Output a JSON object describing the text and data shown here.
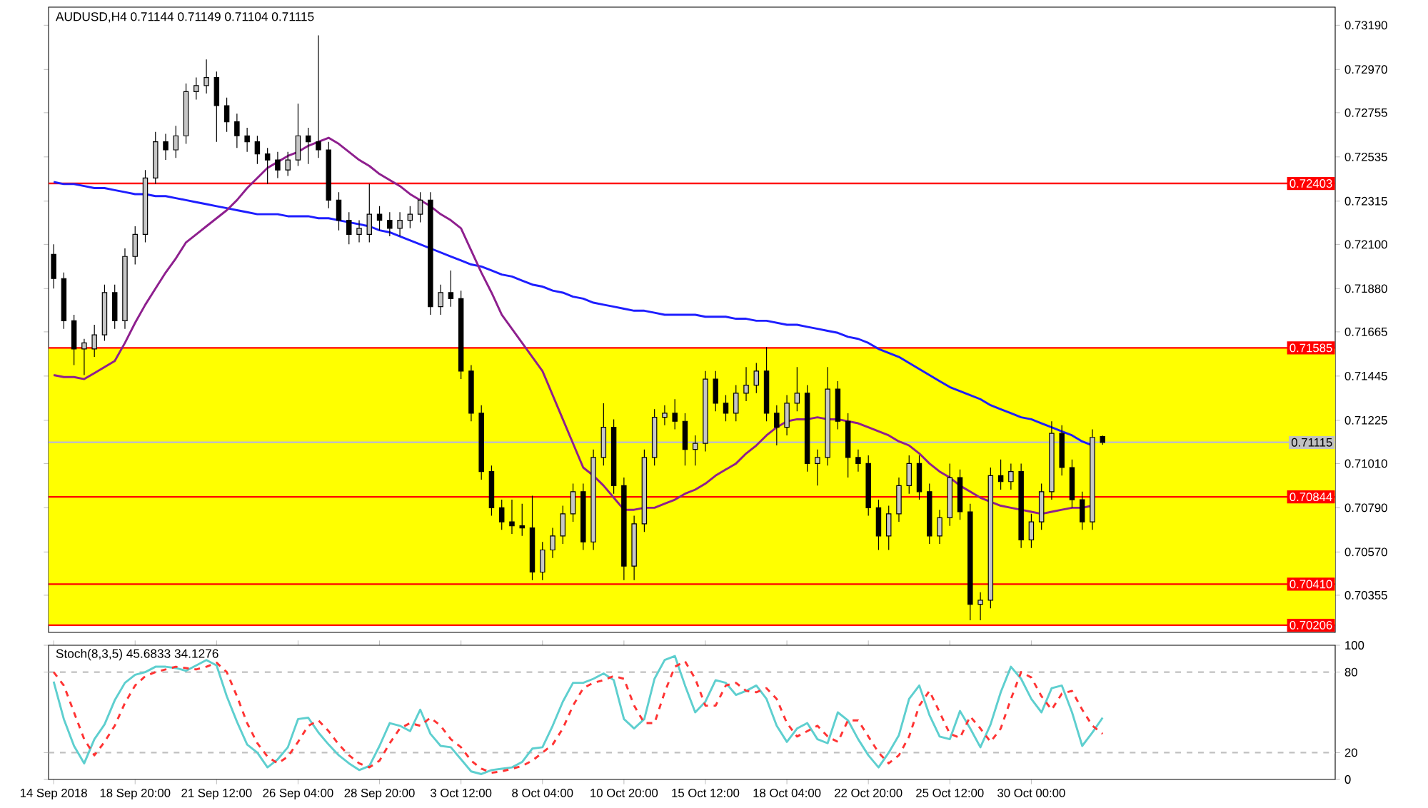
{
  "chart_data": [
    {
      "type": "candlestick",
      "title": "AUDUSD,H4 0.71144 0.71149 0.71104 0.71115",
      "categories": [
        null,
        null,
        null,
        null,
        null,
        null,
        null,
        null,
        null,
        null,
        null,
        null,
        null,
        null,
        null,
        null,
        null,
        null,
        null,
        null,
        null,
        null,
        null,
        null,
        null,
        null,
        null,
        null,
        null,
        null,
        null,
        null,
        null,
        null,
        null,
        null,
        null,
        null,
        null,
        null,
        null,
        null,
        null,
        null,
        null,
        null,
        null,
        null,
        null,
        null,
        null,
        null,
        null,
        null,
        null,
        null,
        null,
        null,
        null,
        null,
        null,
        null,
        null,
        null,
        null,
        null,
        null,
        null,
        null,
        null,
        null,
        null,
        null,
        null,
        null,
        null,
        null,
        null,
        null,
        null,
        null,
        null,
        null,
        null,
        null,
        null,
        null,
        null,
        null,
        null,
        null,
        null,
        null,
        null,
        null,
        null,
        null,
        null,
        null,
        null,
        null,
        null,
        null,
        null
      ],
      "tick_labels": "y",
      "ohlc": [
        [
          0.7205,
          0.721,
          0.7188,
          0.7193
        ],
        [
          0.7193,
          0.7196,
          0.7168,
          0.7172
        ],
        [
          0.7172,
          0.7175,
          0.715,
          0.7158
        ],
        [
          0.7158,
          0.7163,
          0.7145,
          0.7161
        ],
        [
          0.7158,
          0.717,
          0.7154,
          0.7165
        ],
        [
          0.7165,
          0.719,
          0.7162,
          0.7186
        ],
        [
          0.7186,
          0.719,
          0.7168,
          0.7172
        ],
        [
          0.7172,
          0.7208,
          0.7168,
          0.7204
        ],
        [
          0.7204,
          0.7219,
          0.72,
          0.7215
        ],
        [
          0.7215,
          0.7247,
          0.7211,
          0.7243
        ],
        [
          0.7243,
          0.7266,
          0.724,
          0.7261
        ],
        [
          0.7261,
          0.7265,
          0.7252,
          0.7257
        ],
        [
          0.7257,
          0.7269,
          0.7253,
          0.7264
        ],
        [
          0.7264,
          0.729,
          0.726,
          0.7286
        ],
        [
          0.7286,
          0.7293,
          0.7282,
          0.7289
        ],
        [
          0.7289,
          0.7302,
          0.7285,
          0.7293
        ],
        [
          0.7293,
          0.7296,
          0.7261,
          0.7279
        ],
        [
          0.7279,
          0.7283,
          0.7266,
          0.7271
        ],
        [
          0.7271,
          0.7275,
          0.7258,
          0.7264
        ],
        [
          0.7264,
          0.7268,
          0.7256,
          0.7261
        ],
        [
          0.7261,
          0.7264,
          0.725,
          0.7255
        ],
        [
          0.7255,
          0.7258,
          0.724,
          0.7252
        ],
        [
          0.7252,
          0.7256,
          0.7243,
          0.7247
        ],
        [
          0.7247,
          0.7256,
          0.7244,
          0.7252
        ],
        [
          0.7252,
          0.728,
          0.7249,
          0.7264
        ],
        [
          0.7264,
          0.7268,
          0.725,
          0.7261
        ],
        [
          0.7261,
          0.7314,
          0.7253,
          0.7257
        ],
        [
          0.7257,
          0.7261,
          0.7228,
          0.7232
        ],
        [
          0.7232,
          0.7236,
          0.7217,
          0.7222
        ],
        [
          0.7222,
          0.7226,
          0.721,
          0.7215
        ],
        [
          0.7215,
          0.7222,
          0.7211,
          0.7218
        ],
        [
          0.7215,
          0.724,
          0.7211,
          0.7225
        ],
        [
          0.7225,
          0.7229,
          0.7217,
          0.7222
        ],
        [
          0.7222,
          0.7226,
          0.7214,
          0.7218
        ],
        [
          0.7218,
          0.7226,
          0.7214,
          0.7222
        ],
        [
          0.7222,
          0.7229,
          0.7218,
          0.7225
        ],
        [
          0.7225,
          0.7236,
          0.7221,
          0.7232
        ],
        [
          0.7232,
          0.7236,
          0.7175,
          0.7179
        ],
        [
          0.7179,
          0.719,
          0.7175,
          0.7186
        ],
        [
          0.7186,
          0.7197,
          0.7179,
          0.7183
        ],
        [
          0.7183,
          0.7187,
          0.7143,
          0.7147
        ],
        [
          0.7147,
          0.715,
          0.7122,
          0.7126
        ],
        [
          0.7126,
          0.713,
          0.7093,
          0.7097
        ],
        [
          0.7097,
          0.71,
          0.7075,
          0.7079
        ],
        [
          0.7079,
          0.7083,
          0.7068,
          0.7072
        ],
        [
          0.7072,
          0.7083,
          0.7066,
          0.707
        ],
        [
          0.707,
          0.7081,
          0.7065,
          0.7069
        ],
        [
          0.7069,
          0.7085,
          0.7043,
          0.7047
        ],
        [
          0.7047,
          0.7062,
          0.7043,
          0.7058
        ],
        [
          0.7058,
          0.7069,
          0.7054,
          0.7065
        ],
        [
          0.7065,
          0.708,
          0.7061,
          0.7076
        ],
        [
          0.7076,
          0.7091,
          0.7072,
          0.7087
        ],
        [
          0.7087,
          0.7091,
          0.7058,
          0.7062
        ],
        [
          0.7062,
          0.7108,
          0.7058,
          0.7104
        ],
        [
          0.7104,
          0.7131,
          0.71,
          0.7119
        ],
        [
          0.7119,
          0.7123,
          0.7086,
          0.709
        ],
        [
          0.709,
          0.7094,
          0.7043,
          0.705
        ],
        [
          0.705,
          0.7075,
          0.7043,
          0.7071
        ],
        [
          0.7071,
          0.7108,
          0.7067,
          0.7104
        ],
        [
          0.7104,
          0.7128,
          0.71,
          0.7124
        ],
        [
          0.7124,
          0.713,
          0.712,
          0.7126
        ],
        [
          0.7126,
          0.7133,
          0.7118,
          0.7122
        ],
        [
          0.7122,
          0.7126,
          0.71,
          0.7108
        ],
        [
          0.7108,
          0.7115,
          0.71,
          0.7111
        ],
        [
          0.7111,
          0.7147,
          0.7107,
          0.7143
        ],
        [
          0.7143,
          0.7147,
          0.7127,
          0.7131
        ],
        [
          0.7131,
          0.7135,
          0.7122,
          0.7126
        ],
        [
          0.7126,
          0.714,
          0.7122,
          0.7136
        ],
        [
          0.7136,
          0.7149,
          0.7132,
          0.714
        ],
        [
          0.714,
          0.7151,
          0.7136,
          0.7147
        ],
        [
          0.7147,
          0.7159,
          0.7122,
          0.7126
        ],
        [
          0.7126,
          0.713,
          0.711,
          0.7119
        ],
        [
          0.7119,
          0.7135,
          0.7115,
          0.7131
        ],
        [
          0.7131,
          0.7149,
          0.7127,
          0.7136
        ],
        [
          0.7136,
          0.714,
          0.7097,
          0.7101
        ],
        [
          0.7101,
          0.7108,
          0.709,
          0.7104
        ],
        [
          0.7104,
          0.7149,
          0.71,
          0.7138
        ],
        [
          0.7138,
          0.7142,
          0.7118,
          0.7122
        ],
        [
          0.7122,
          0.7126,
          0.7094,
          0.7104
        ],
        [
          0.7104,
          0.7108,
          0.7097,
          0.7101
        ],
        [
          0.7101,
          0.7105,
          0.7075,
          0.7079
        ],
        [
          0.7079,
          0.7083,
          0.7058,
          0.7065
        ],
        [
          0.7065,
          0.708,
          0.7058,
          0.7076
        ],
        [
          0.7076,
          0.7094,
          0.7072,
          0.709
        ],
        [
          0.709,
          0.7105,
          0.7086,
          0.7101
        ],
        [
          0.7101,
          0.7105,
          0.7083,
          0.7087
        ],
        [
          0.7087,
          0.7091,
          0.7061,
          0.7065
        ],
        [
          0.7065,
          0.7078,
          0.7061,
          0.7074
        ],
        [
          0.7074,
          0.7101,
          0.707,
          0.7094
        ],
        [
          0.7094,
          0.7098,
          0.7073,
          0.7077
        ],
        [
          0.7077,
          0.7081,
          0.7023,
          0.7031
        ],
        [
          0.7031,
          0.7037,
          0.7023,
          0.7033
        ],
        [
          0.7033,
          0.7099,
          0.7029,
          0.7095
        ],
        [
          0.7095,
          0.7103,
          0.7088,
          0.7092
        ],
        [
          0.7092,
          0.7101,
          0.7088,
          0.7097
        ],
        [
          0.7097,
          0.7101,
          0.7059,
          0.7063
        ],
        [
          0.7063,
          0.7076,
          0.7059,
          0.7072
        ],
        [
          0.7072,
          0.7091,
          0.7068,
          0.7087
        ],
        [
          0.7087,
          0.7122,
          0.7083,
          0.7116
        ],
        [
          0.7116,
          0.712,
          0.7095,
          0.7099
        ],
        [
          0.7099,
          0.7103,
          0.7079,
          0.7083
        ],
        [
          0.7083,
          0.7087,
          0.7068,
          0.7072
        ],
        [
          0.7072,
          0.7118,
          0.7068,
          0.7114
        ],
        [
          0.71144,
          0.71149,
          0.71104,
          0.71115
        ]
      ],
      "series": [
        {
          "type": "line",
          "color": "#1e1eff",
          "values": [
            0.7241,
            0.724,
            0.724,
            0.7239,
            0.7238,
            0.7238,
            0.7237,
            0.7236,
            0.7235,
            0.7235,
            0.7234,
            0.7234,
            0.7233,
            0.7232,
            0.7231,
            0.723,
            0.7229,
            0.7228,
            0.7227,
            0.7226,
            0.7225,
            0.7225,
            0.7225,
            0.7224,
            0.7224,
            0.7224,
            0.7223,
            0.7223,
            0.7222,
            0.7221,
            0.722,
            0.7219,
            0.7217,
            0.7216,
            0.7214,
            0.7212,
            0.721,
            0.7208,
            0.7206,
            0.7204,
            0.7202,
            0.72,
            0.7199,
            0.7197,
            0.7195,
            0.7194,
            0.7192,
            0.719,
            0.7189,
            0.7187,
            0.7186,
            0.7184,
            0.7183,
            0.7181,
            0.718,
            0.7179,
            0.7178,
            0.7177,
            0.7177,
            0.7176,
            0.7175,
            0.7175,
            0.7175,
            0.7175,
            0.7174,
            0.7174,
            0.7174,
            0.7173,
            0.7173,
            0.7172,
            0.7172,
            0.7171,
            0.717,
            0.717,
            0.7169,
            0.7168,
            0.7167,
            0.7166,
            0.7164,
            0.7163,
            0.7161,
            0.7158,
            0.7156,
            0.7154,
            0.7151,
            0.7148,
            0.7145,
            0.7142,
            0.7139,
            0.7137,
            0.7135,
            0.7133,
            0.713,
            0.7128,
            0.7126,
            0.7124,
            0.7123,
            0.7121,
            0.7119,
            0.7117,
            0.7115,
            0.7112,
            0.711,
            null
          ]
        },
        {
          "type": "line",
          "color": "#8e1f8e",
          "values": [
            0.7145,
            0.7144,
            0.7144,
            0.7143,
            0.7146,
            0.7149,
            0.7152,
            0.7161,
            0.7171,
            0.718,
            0.7188,
            0.7196,
            0.7203,
            0.7211,
            0.7215,
            0.7219,
            0.7223,
            0.7227,
            0.7232,
            0.7238,
            0.7243,
            0.7248,
            0.7251,
            0.7254,
            0.7256,
            0.7259,
            0.7261,
            0.7263,
            0.726,
            0.7256,
            0.7252,
            0.7249,
            0.7245,
            0.7242,
            0.7239,
            0.7235,
            0.7232,
            0.7229,
            0.7225,
            0.7222,
            0.7218,
            0.7207,
            0.7196,
            0.7186,
            0.7175,
            0.7168,
            0.7161,
            0.7154,
            0.7147,
            0.7135,
            0.7123,
            0.7111,
            0.7099,
            0.7095,
            0.709,
            0.7084,
            0.7078,
            0.7078,
            0.7079,
            0.7079,
            0.7081,
            0.7083,
            0.7086,
            0.7088,
            0.7091,
            0.7095,
            0.7098,
            0.7101,
            0.7106,
            0.711,
            0.7115,
            0.7119,
            0.7122,
            0.7123,
            0.7123,
            0.7124,
            0.7123,
            0.7123,
            0.7122,
            0.7121,
            0.7119,
            0.7117,
            0.7115,
            0.7112,
            0.711,
            0.7106,
            0.7101,
            0.7097,
            0.7094,
            0.709,
            0.7087,
            0.7084,
            0.7082,
            0.708,
            0.7079,
            0.7078,
            0.7077,
            0.7076,
            0.7077,
            0.7078,
            0.7079,
            0.7079,
            0.708,
            null
          ]
        }
      ],
      "ylim": [
        0.7017,
        0.7328
      ],
      "yticks": [
        {
          "value": 0.7319,
          "label": "0.73190"
        },
        {
          "value": 0.7297,
          "label": "0.72970"
        },
        {
          "value": 0.72755,
          "label": "0.72755"
        },
        {
          "value": 0.72535,
          "label": "0.72535"
        },
        {
          "value": 0.72315,
          "label": "0.72315"
        },
        {
          "value": 0.721,
          "label": "0.72100"
        },
        {
          "value": 0.7188,
          "label": "0.71880"
        },
        {
          "value": 0.71665,
          "label": "0.71665"
        },
        {
          "value": 0.71445,
          "label": "0.71445"
        },
        {
          "value": 0.71225,
          "label": "0.71225"
        },
        {
          "value": 0.7101,
          "label": "0.71010"
        },
        {
          "value": 0.7079,
          "label": "0.70790"
        },
        {
          "value": 0.7057,
          "label": "0.70570"
        },
        {
          "value": 0.70355,
          "label": "0.70355"
        }
      ],
      "bands": [
        {
          "axis": "y",
          "from": 0.70206,
          "to": 0.71585,
          "color": "#ffff00"
        }
      ],
      "ref_lines": [
        {
          "axis": "y",
          "value": 0.72403,
          "label": "0.72403",
          "color": "#ff0000"
        },
        {
          "axis": "y",
          "value": 0.71585,
          "label": "0.71585",
          "color": "#ff0000"
        },
        {
          "axis": "y",
          "value": 0.71115,
          "label": "0.71115",
          "color": "#c0c0c0"
        },
        {
          "axis": "y",
          "value": 0.70844,
          "label": "0.70844",
          "color": "#ff0000"
        },
        {
          "axis": "y",
          "value": 0.7041,
          "label": "0.70410",
          "color": "#ff0000"
        },
        {
          "axis": "y",
          "value": 0.70206,
          "label": "0.70206",
          "color": "#ff0000"
        }
      ]
    },
    {
      "type": "line",
      "title": "Stoch(8,3,5) 45.6833 34.1276",
      "categories": [
        "14 Sep 2018",
        null,
        null,
        null,
        null,
        null,
        null,
        null,
        "18 Sep 20:00",
        null,
        null,
        null,
        null,
        null,
        null,
        null,
        "21 Sep 12:00",
        null,
        null,
        null,
        null,
        null,
        null,
        null,
        "26 Sep 04:00",
        null,
        null,
        null,
        null,
        null,
        null,
        null,
        "28 Sep 20:00",
        null,
        null,
        null,
        null,
        null,
        null,
        null,
        "3 Oct 12:00",
        null,
        null,
        null,
        null,
        null,
        null,
        null,
        "8 Oct 04:00",
        null,
        null,
        null,
        null,
        null,
        null,
        null,
        "10 Oct 20:00",
        null,
        null,
        null,
        null,
        null,
        null,
        null,
        "15 Oct 12:00",
        null,
        null,
        null,
        null,
        null,
        null,
        null,
        "18 Oct 04:00",
        null,
        null,
        null,
        null,
        null,
        null,
        null,
        "22 Oct 20:00",
        null,
        null,
        null,
        null,
        null,
        null,
        null,
        "25 Oct 12:00",
        null,
        null,
        null,
        null,
        null,
        null,
        null,
        "30 Oct 00:00",
        null,
        null,
        null,
        null,
        null,
        null,
        null
      ],
      "series": [
        {
          "color": "#5ecfcf",
          "line_style": "solid",
          "values": [
            73,
            45,
            25,
            12,
            30,
            41,
            59,
            72,
            78,
            80,
            84,
            84,
            83,
            81,
            85,
            89,
            85,
            62,
            43,
            26,
            20,
            9,
            15,
            24,
            45,
            46,
            35,
            26,
            18,
            12,
            7,
            10,
            25,
            42,
            40,
            36,
            52,
            34,
            25,
            24,
            15,
            6,
            4,
            7,
            8,
            9,
            13,
            23,
            24,
            40,
            58,
            72,
            72,
            75,
            79,
            74,
            45,
            38,
            45,
            75,
            89,
            92,
            70,
            50,
            58,
            74,
            72,
            63,
            66,
            70,
            60,
            40,
            28,
            38,
            42,
            30,
            27,
            50,
            44,
            30,
            18,
            9,
            20,
            33,
            60,
            70,
            48,
            32,
            30,
            51,
            38,
            24,
            41,
            65,
            84,
            75,
            60,
            50,
            68,
            70,
            50,
            25,
            35,
            46
          ]
        },
        {
          "color": "#ff3333",
          "line_style": "dashed",
          "values": [
            80,
            70,
            50,
            30,
            18,
            28,
            40,
            57,
            70,
            77,
            80,
            82,
            84,
            83,
            82,
            84,
            87,
            80,
            62,
            42,
            27,
            17,
            12,
            17,
            28,
            40,
            44,
            36,
            26,
            18,
            12,
            9,
            14,
            27,
            38,
            42,
            40,
            46,
            40,
            30,
            24,
            14,
            8,
            5,
            6,
            8,
            10,
            14,
            20,
            26,
            38,
            55,
            68,
            72,
            74,
            77,
            75,
            55,
            42,
            42,
            65,
            84,
            88,
            75,
            55,
            55,
            70,
            72,
            66,
            65,
            68,
            60,
            42,
            32,
            36,
            40,
            32,
            28,
            44,
            44,
            32,
            20,
            12,
            18,
            32,
            55,
            66,
            50,
            34,
            31,
            47,
            38,
            28,
            38,
            60,
            80,
            76,
            62,
            52,
            64,
            66,
            52,
            40,
            34
          ]
        }
      ],
      "ylim": [
        0,
        100
      ],
      "yticks": [
        0,
        20,
        80,
        100
      ],
      "ref_lines": [
        {
          "axis": "y",
          "value": 20,
          "color": "#c0c0c0",
          "line_style": "dashed"
        },
        {
          "axis": "y",
          "value": 80,
          "color": "#c0c0c0",
          "line_style": "dashed"
        }
      ]
    }
  ]
}
